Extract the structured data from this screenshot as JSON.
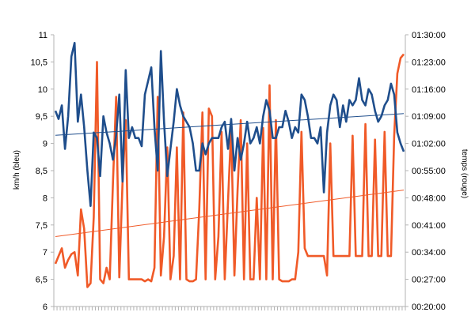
{
  "chart_data": {
    "type": "line",
    "title": "",
    "ylabel": "km/h (bleu)",
    "y2label": "temps (rouge)",
    "ylim": [
      6,
      11
    ],
    "y2lim": [
      "00:20:00",
      "01:30:00"
    ],
    "y_ticks": [
      "6",
      "6,5",
      "7",
      "7,5",
      "8",
      "8,5",
      "9",
      "9,5",
      "10",
      "10,5",
      "11"
    ],
    "y2_ticks": [
      "00:20:00",
      "00:27:00",
      "00:34:00",
      "00:41:00",
      "00:48:00",
      "00:55:00",
      "01:02:00",
      "01:09:00",
      "01:16:00",
      "01:23:00",
      "01:30:00"
    ],
    "x_tick_count": 110,
    "grid": false,
    "series": [
      {
        "axis": "left",
        "color": "#1f4e8c",
        "values": [
          9.6,
          9.45,
          9.7,
          8.9,
          9.5,
          10.6,
          10.85,
          9.4,
          9.9,
          9.3,
          8.5,
          7.85,
          9.2,
          9.1,
          8.4,
          9.5,
          9.2,
          9.0,
          8.7,
          9.15,
          9.9,
          8.3,
          10.35,
          9.1,
          9.3,
          9.1,
          9.1,
          8.95,
          9.9,
          10.15,
          10.4,
          9.3,
          8.5,
          10.7,
          9.4,
          8.4,
          8.9,
          9.4,
          10.0,
          9.7,
          9.5,
          9.4,
          9.3,
          9.0,
          8.5,
          8.5,
          9.0,
          8.8,
          9.0,
          9.1,
          9.1,
          9.1,
          9.3,
          9.4,
          8.9,
          9.45,
          8.5,
          9.1,
          8.7,
          9.0,
          9.4,
          9.0,
          9.1,
          9.3,
          9.0,
          9.5,
          9.8,
          9.6,
          9.1,
          9.1,
          9.3,
          9.3,
          9.6,
          9.4,
          9.1,
          9.3,
          9.2,
          9.9,
          9.8,
          9.5,
          9.1,
          9.1,
          9.0,
          9.3,
          8.1,
          9.2,
          9.7,
          9.9,
          9.8,
          9.3,
          9.7,
          9.4,
          9.8,
          9.7,
          9.8,
          10.2,
          9.8,
          9.7,
          10.0,
          9.9,
          9.6,
          9.4,
          9.5,
          9.7,
          9.8,
          10.1,
          9.9,
          9.2,
          9.0,
          8.85
        ],
        "trend": [
          9.15,
          9.55
        ]
      },
      {
        "axis": "right",
        "color": "#f05a28",
        "values": [
          "00:31:00",
          "00:33:00",
          "00:35:00",
          "00:30:00",
          "00:32:00",
          "00:33:30",
          "00:34:00",
          "00:28:00",
          "00:45:00",
          "00:40:00",
          "00:25:00",
          "00:26:00",
          "00:43:00",
          "01:23:00",
          "00:27:00",
          "00:26:00",
          "00:30:00",
          "00:27:00",
          "00:52:00",
          "01:14:00",
          "00:27:30",
          "00:52:00",
          "01:08:00",
          "00:27:00",
          "00:27:00",
          "00:27:00",
          "00:27:00",
          "00:27:00",
          "00:26:30",
          "00:27:00",
          "00:26:30",
          "00:30:00",
          "01:14:00",
          "00:28:00",
          "00:38:00",
          "01:01:00",
          "00:27:00",
          "00:33:00",
          "01:01:00",
          "00:27:00",
          "01:10:00",
          "00:27:00",
          "00:26:30",
          "00:26:30",
          "00:27:00",
          "00:45:00",
          "01:10:00",
          "00:27:00",
          "01:11:00",
          "01:09:00",
          "00:27:00",
          "00:38:00",
          "01:05:00",
          "00:27:00",
          "00:47:00",
          "01:06:00",
          "00:28:00",
          "00:50:00",
          "01:08:00",
          "00:27:00",
          "01:02:00",
          "00:27:00",
          "00:27:00",
          "00:48:00",
          "00:27:00",
          "01:06:00",
          "00:27:00",
          "01:17:00",
          "00:27:00",
          "01:08:00",
          "00:27:00",
          "00:26:30",
          "00:26:30",
          "00:26:30",
          "00:27:00",
          "00:27:00",
          "00:34:00",
          "01:05:00",
          "00:35:00",
          "00:33:00",
          "00:33:00",
          "00:33:00",
          "00:33:00",
          "00:33:00",
          "00:33:00",
          "00:28:00",
          "01:02:00",
          "00:33:00",
          "00:33:00",
          "00:33:00",
          "00:33:00",
          "00:33:00",
          "00:33:00",
          "01:04:00",
          "00:33:00",
          "00:33:00",
          "00:33:00",
          "01:07:00",
          "00:33:00",
          "00:33:00",
          "01:03:00",
          "00:33:00",
          "00:33:00",
          "01:05:00",
          "00:33:00",
          "00:33:00",
          "01:04:00",
          "01:20:00",
          "01:24:00",
          "01:25:00"
        ],
        "trend": [
          "00:38:00",
          "00:50:00"
        ]
      }
    ]
  }
}
